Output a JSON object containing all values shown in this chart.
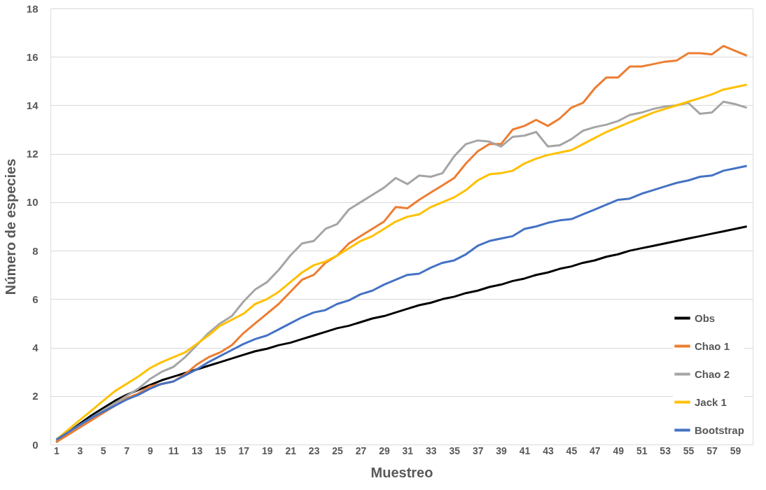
{
  "chart_data": {
    "type": "line",
    "xlabel": "Muestreo",
    "ylabel": "Número de especies",
    "x": [
      1,
      2,
      3,
      4,
      5,
      6,
      7,
      8,
      9,
      10,
      11,
      12,
      13,
      14,
      15,
      16,
      17,
      18,
      19,
      20,
      21,
      22,
      23,
      24,
      25,
      26,
      27,
      28,
      29,
      30,
      31,
      32,
      33,
      34,
      35,
      36,
      37,
      38,
      39,
      40,
      41,
      42,
      43,
      44,
      45,
      46,
      47,
      48,
      49,
      50,
      51,
      52,
      53,
      54,
      55,
      56,
      57,
      58,
      59,
      60
    ],
    "xlim": [
      0.5,
      60.5
    ],
    "xticks": [
      1,
      3,
      5,
      7,
      9,
      11,
      13,
      15,
      17,
      19,
      21,
      23,
      25,
      27,
      29,
      31,
      33,
      35,
      37,
      39,
      41,
      43,
      45,
      47,
      49,
      51,
      53,
      55,
      57,
      59
    ],
    "ylim": [
      0,
      18
    ],
    "yticks": [
      0,
      2,
      4,
      6,
      8,
      10,
      12,
      14,
      16,
      18
    ],
    "grid": "y",
    "legend": "bottom right",
    "marker": "none",
    "line_style": "solid",
    "series": [
      {
        "name": "Obs",
        "color": "#000000",
        "values": [
          0.1,
          0.5,
          0.85,
          1.2,
          1.5,
          1.8,
          2.05,
          2.25,
          2.45,
          2.65,
          2.8,
          2.95,
          3.1,
          3.25,
          3.4,
          3.55,
          3.7,
          3.85,
          3.95,
          4.1,
          4.2,
          4.35,
          4.5,
          4.65,
          4.8,
          4.9,
          5.05,
          5.2,
          5.3,
          5.45,
          5.6,
          5.75,
          5.85,
          6.0,
          6.1,
          6.25,
          6.35,
          6.5,
          6.6,
          6.75,
          6.85,
          7.0,
          7.1,
          7.25,
          7.35,
          7.5,
          7.6,
          7.75,
          7.85,
          8.0,
          8.1,
          8.2,
          8.3,
          8.4,
          8.5,
          8.6,
          8.7,
          8.8,
          8.9,
          9.0
        ]
      },
      {
        "name": "Chao 1",
        "color": "#ed7d31",
        "values": [
          0.1,
          0.4,
          0.7,
          1.0,
          1.3,
          1.6,
          1.9,
          2.1,
          2.4,
          2.5,
          2.6,
          2.9,
          3.3,
          3.6,
          3.8,
          4.1,
          4.6,
          5.0,
          5.4,
          5.8,
          6.3,
          6.8,
          7.0,
          7.5,
          7.8,
          8.3,
          8.6,
          8.9,
          9.2,
          9.8,
          9.75,
          10.1,
          10.4,
          10.7,
          11.0,
          11.6,
          12.1,
          12.4,
          12.4,
          13.0,
          13.15,
          13.4,
          13.15,
          13.45,
          13.9,
          14.1,
          14.7,
          15.15,
          15.15,
          15.6,
          15.6,
          15.7,
          15.8,
          15.85,
          16.15,
          16.15,
          16.1,
          16.45,
          16.25,
          16.05
        ]
      },
      {
        "name": "Chao 2",
        "color": "#a5a5a5",
        "values": [
          0.2,
          0.5,
          0.8,
          1.1,
          1.4,
          1.7,
          2.0,
          2.3,
          2.7,
          3.0,
          3.2,
          3.6,
          4.1,
          4.6,
          5.0,
          5.3,
          5.9,
          6.4,
          6.7,
          7.2,
          7.8,
          8.3,
          8.4,
          8.9,
          9.1,
          9.7,
          10.0,
          10.3,
          10.6,
          11.0,
          10.75,
          11.1,
          11.05,
          11.2,
          11.9,
          12.4,
          12.55,
          12.5,
          12.3,
          12.7,
          12.75,
          12.9,
          12.3,
          12.35,
          12.6,
          12.95,
          13.1,
          13.2,
          13.35,
          13.6,
          13.7,
          13.85,
          13.95,
          14.0,
          14.1,
          13.65,
          13.7,
          14.15,
          14.05,
          13.9
        ]
      },
      {
        "name": "Jack 1",
        "color": "#ffc000",
        "values": [
          0.2,
          0.6,
          1.0,
          1.4,
          1.8,
          2.2,
          2.5,
          2.8,
          3.15,
          3.4,
          3.6,
          3.8,
          4.15,
          4.5,
          4.9,
          5.15,
          5.4,
          5.8,
          6.0,
          6.3,
          6.7,
          7.1,
          7.4,
          7.55,
          7.8,
          8.1,
          8.4,
          8.6,
          8.9,
          9.2,
          9.4,
          9.5,
          9.8,
          10.0,
          10.2,
          10.5,
          10.9,
          11.15,
          11.2,
          11.3,
          11.6,
          11.8,
          11.95,
          12.05,
          12.15,
          12.4,
          12.65,
          12.9,
          13.1,
          13.3,
          13.5,
          13.7,
          13.85,
          14.0,
          14.15,
          14.3,
          14.45,
          14.65,
          14.75,
          14.85
        ]
      },
      {
        "name": "Bootstrap",
        "color": "#4472c4",
        "values": [
          0.2,
          0.5,
          0.8,
          1.1,
          1.35,
          1.6,
          1.85,
          2.05,
          2.3,
          2.5,
          2.6,
          2.85,
          3.1,
          3.4,
          3.65,
          3.9,
          4.15,
          4.35,
          4.5,
          4.75,
          5.0,
          5.25,
          5.45,
          5.55,
          5.8,
          5.95,
          6.2,
          6.35,
          6.6,
          6.8,
          7.0,
          7.05,
          7.3,
          7.5,
          7.6,
          7.85,
          8.2,
          8.4,
          8.5,
          8.6,
          8.9,
          9.0,
          9.15,
          9.25,
          9.3,
          9.5,
          9.7,
          9.9,
          10.1,
          10.15,
          10.35,
          10.5,
          10.65,
          10.8,
          10.9,
          11.05,
          11.1,
          11.3,
          11.4,
          11.5
        ]
      }
    ]
  }
}
